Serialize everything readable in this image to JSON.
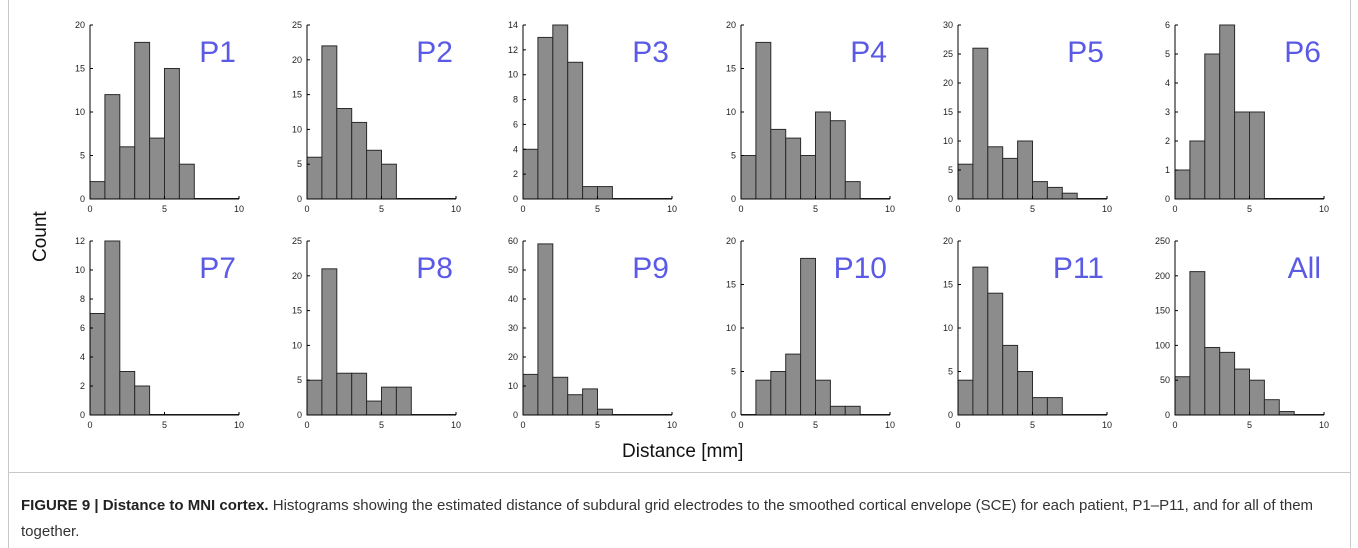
{
  "figure": {
    "ylabel": "Count",
    "xlabel": "Distance [mm]",
    "caption_bold": "FIGURE 9 | Distance to MNI cortex.",
    "caption_text": " Histograms showing the estimated distance of subdural grid electrodes to the smoothed cortical envelope (SCE) for each patient, P1–P11, and for all of them together.",
    "colors": {
      "bar": "#8c8c8c",
      "bar_edge": "#2b2b2b",
      "panel_label": "#5a5ae6"
    }
  },
  "chart_data": [
    {
      "type": "bar",
      "label": "P1",
      "bin_edges": [
        0,
        1,
        2,
        3,
        4,
        5,
        6,
        7,
        8,
        9,
        10
      ],
      "values": [
        2,
        12,
        6,
        18,
        7,
        15,
        4,
        0,
        0,
        0
      ],
      "xlim": [
        0,
        10
      ],
      "ylim": [
        0,
        20
      ],
      "xticks": [
        0,
        5,
        10
      ],
      "yticks": [
        0,
        5,
        10,
        15,
        20
      ]
    },
    {
      "type": "bar",
      "label": "P2",
      "bin_edges": [
        0,
        1,
        2,
        3,
        4,
        5,
        6,
        7,
        8,
        9,
        10
      ],
      "values": [
        6,
        22,
        13,
        11,
        7,
        5,
        0,
        0,
        0,
        0
      ],
      "xlim": [
        0,
        10
      ],
      "ylim": [
        0,
        25
      ],
      "xticks": [
        0,
        5,
        10
      ],
      "yticks": [
        0,
        5,
        10,
        15,
        20,
        25
      ]
    },
    {
      "type": "bar",
      "label": "P3",
      "bin_edges": [
        0,
        1,
        2,
        3,
        4,
        5,
        6,
        7,
        8,
        9,
        10
      ],
      "values": [
        4,
        13,
        14,
        11,
        1,
        1,
        0,
        0,
        0,
        0
      ],
      "xlim": [
        0,
        10
      ],
      "ylim": [
        0,
        14
      ],
      "xticks": [
        0,
        5,
        10
      ],
      "yticks": [
        0,
        2,
        4,
        6,
        8,
        10,
        12,
        14
      ]
    },
    {
      "type": "bar",
      "label": "P4",
      "bin_edges": [
        0,
        1,
        2,
        3,
        4,
        5,
        6,
        7,
        8,
        9,
        10
      ],
      "values": [
        5,
        18,
        8,
        7,
        5,
        10,
        9,
        2,
        0,
        0
      ],
      "xlim": [
        0,
        10
      ],
      "ylim": [
        0,
        20
      ],
      "xticks": [
        0,
        5,
        10
      ],
      "yticks": [
        0,
        5,
        10,
        15,
        20
      ]
    },
    {
      "type": "bar",
      "label": "P5",
      "bin_edges": [
        0,
        1,
        2,
        3,
        4,
        5,
        6,
        7,
        8,
        9,
        10
      ],
      "values": [
        6,
        26,
        9,
        7,
        10,
        3,
        2,
        1,
        0,
        0
      ],
      "xlim": [
        0,
        10
      ],
      "ylim": [
        0,
        30
      ],
      "xticks": [
        0,
        5,
        10
      ],
      "yticks": [
        0,
        5,
        10,
        15,
        20,
        25,
        30
      ]
    },
    {
      "type": "bar",
      "label": "P6",
      "bin_edges": [
        0,
        1,
        2,
        3,
        4,
        5,
        6,
        7,
        8,
        9,
        10
      ],
      "values": [
        1,
        2,
        5,
        6,
        3,
        3,
        0,
        0,
        0,
        0
      ],
      "xlim": [
        0,
        10
      ],
      "ylim": [
        0,
        6
      ],
      "xticks": [
        0,
        5,
        10
      ],
      "yticks": [
        0,
        1,
        2,
        3,
        4,
        5,
        6
      ]
    },
    {
      "type": "bar",
      "label": "P7",
      "bin_edges": [
        0,
        1,
        2,
        3,
        4,
        5,
        6,
        7,
        8,
        9,
        10
      ],
      "values": [
        7,
        12,
        3,
        2,
        0,
        0,
        0,
        0,
        0,
        0
      ],
      "xlim": [
        0,
        10
      ],
      "ylim": [
        0,
        12
      ],
      "xticks": [
        0,
        5,
        10
      ],
      "yticks": [
        0,
        2,
        4,
        6,
        8,
        10,
        12
      ]
    },
    {
      "type": "bar",
      "label": "P8",
      "bin_edges": [
        0,
        1,
        2,
        3,
        4,
        5,
        6,
        7,
        8,
        9,
        10
      ],
      "values": [
        5,
        21,
        6,
        6,
        2,
        4,
        4,
        0,
        0,
        0
      ],
      "xlim": [
        0,
        10
      ],
      "ylim": [
        0,
        25
      ],
      "xticks": [
        0,
        5,
        10
      ],
      "yticks": [
        0,
        5,
        10,
        15,
        20,
        25
      ]
    },
    {
      "type": "bar",
      "label": "P9",
      "bin_edges": [
        0,
        1,
        2,
        3,
        4,
        5,
        6,
        7,
        8,
        9,
        10
      ],
      "values": [
        14,
        59,
        13,
        7,
        9,
        2,
        0,
        0,
        0,
        0
      ],
      "xlim": [
        0,
        10
      ],
      "ylim": [
        0,
        60
      ],
      "xticks": [
        0,
        5,
        10
      ],
      "yticks": [
        0,
        10,
        20,
        30,
        40,
        50,
        60
      ]
    },
    {
      "type": "bar",
      "label": "P10",
      "bin_edges": [
        0,
        1,
        2,
        3,
        4,
        5,
        6,
        7,
        8,
        9,
        10
      ],
      "values": [
        0,
        4,
        5,
        7,
        18,
        4,
        1,
        1,
        0,
        0
      ],
      "xlim": [
        0,
        10
      ],
      "ylim": [
        0,
        20
      ],
      "xticks": [
        0,
        5,
        10
      ],
      "yticks": [
        0,
        5,
        10,
        15,
        20
      ]
    },
    {
      "type": "bar",
      "label": "P11",
      "bin_edges": [
        0,
        1,
        2,
        3,
        4,
        5,
        6,
        7,
        8,
        9,
        10
      ],
      "values": [
        4,
        17,
        14,
        8,
        5,
        2,
        2,
        0,
        0,
        0
      ],
      "xlim": [
        0,
        10
      ],
      "ylim": [
        0,
        20
      ],
      "xticks": [
        0,
        5,
        10
      ],
      "yticks": [
        0,
        5,
        10,
        15,
        20
      ]
    },
    {
      "type": "bar",
      "label": "All",
      "bin_edges": [
        0,
        1,
        2,
        3,
        4,
        5,
        6,
        7,
        8,
        9,
        10
      ],
      "values": [
        55,
        206,
        97,
        90,
        66,
        50,
        22,
        5,
        0,
        0
      ],
      "xlim": [
        0,
        10
      ],
      "ylim": [
        0,
        250
      ],
      "xticks": [
        0,
        5,
        10
      ],
      "yticks": [
        0,
        50,
        100,
        150,
        200,
        250
      ]
    }
  ]
}
